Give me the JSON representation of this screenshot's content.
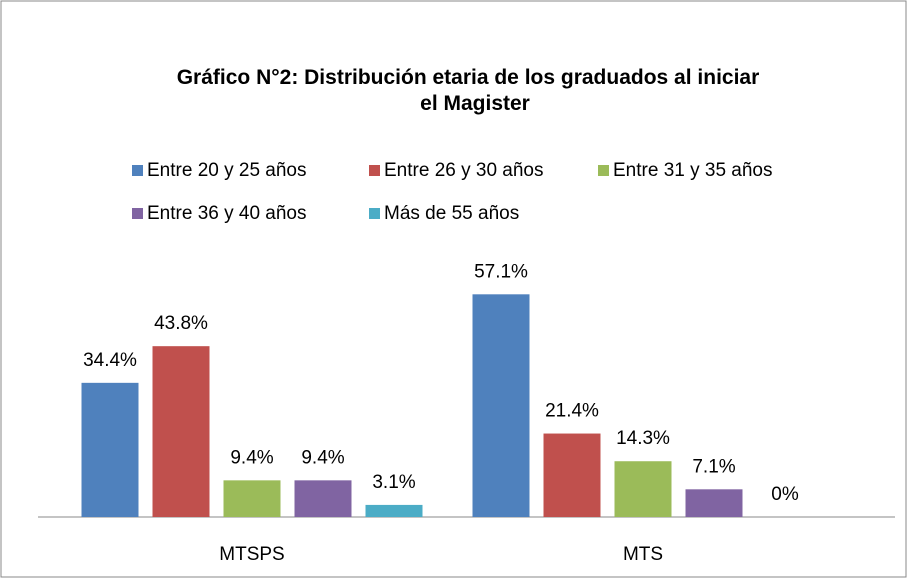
{
  "chart_data": {
    "type": "bar",
    "title": "Gráfico N°2: Distribución etaria de los graduados al iniciar el Magister",
    "categories": [
      "MTSPS",
      "MTS"
    ],
    "series": [
      {
        "name": "Entre 20 y 25 años",
        "color": "#4f81bd",
        "values": [
          34.4,
          57.1
        ],
        "value_labels": [
          "34.4%",
          "57.1%"
        ]
      },
      {
        "name": "Entre 26 y 30 años",
        "color": "#c0504d",
        "values": [
          43.8,
          21.4
        ],
        "value_labels": [
          "43.8%",
          "21.4%"
        ]
      },
      {
        "name": "Entre 31 y 35 años",
        "color": "#9bbb59",
        "values": [
          9.4,
          14.3
        ],
        "value_labels": [
          "9.4%",
          "14.3%"
        ]
      },
      {
        "name": "Entre 36 y 40 años",
        "color": "#8064a2",
        "values": [
          9.4,
          7.1
        ],
        "value_labels": [
          "9.4%",
          "7.1%"
        ]
      },
      {
        "name": "Más de 55 años",
        "color": "#4bacc6",
        "values": [
          3.1,
          0
        ],
        "value_labels": [
          "3.1%",
          "0%"
        ]
      }
    ]
  }
}
